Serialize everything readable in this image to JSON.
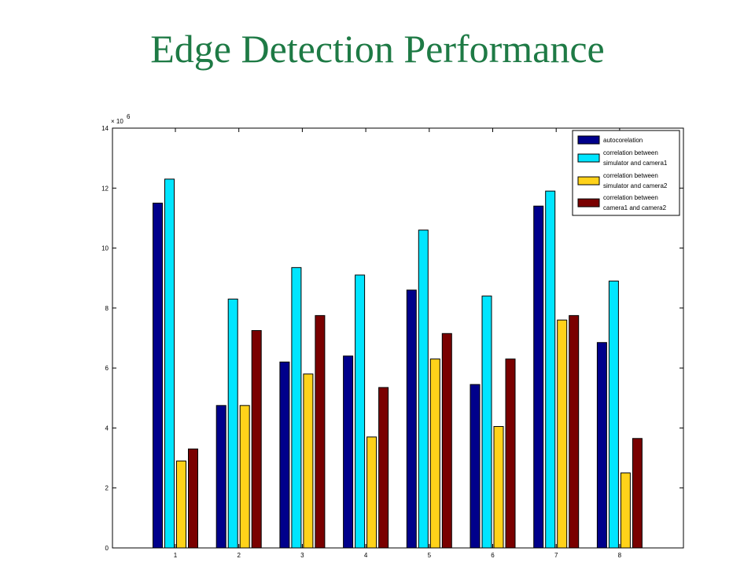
{
  "slide": {
    "title": "Edge Detection Performance"
  },
  "colors": {
    "title": "#1e7a45",
    "series": [
      "#00008b",
      "#00e5ff",
      "#ffd21a",
      "#7a0000"
    ]
  },
  "chart_data": {
    "type": "bar",
    "title": "",
    "xlabel": "",
    "ylabel": "",
    "y_multiplier": "× 10",
    "y_exponent": "6",
    "categories": [
      "1",
      "2",
      "3",
      "4",
      "5",
      "6",
      "7",
      "8"
    ],
    "ylim": [
      0,
      14
    ],
    "yticks": [
      0,
      2,
      4,
      6,
      8,
      10,
      12,
      14
    ],
    "grid": false,
    "legend_position": "top-right",
    "series": [
      {
        "name": "autocorelation",
        "values": [
          11.5,
          4.75,
          6.2,
          6.4,
          8.6,
          5.45,
          11.4,
          6.85
        ]
      },
      {
        "name": "correlation between simulator and camera1",
        "values": [
          12.3,
          8.3,
          9.35,
          9.1,
          10.6,
          8.4,
          11.9,
          8.9
        ]
      },
      {
        "name": "correlation between simulator and camera2",
        "values": [
          2.9,
          4.75,
          5.8,
          3.7,
          6.3,
          4.05,
          7.6,
          2.5
        ]
      },
      {
        "name": "correlation between camera1 and camera2",
        "values": [
          3.3,
          7.25,
          7.75,
          5.35,
          7.15,
          6.3,
          7.75,
          3.65
        ]
      }
    ],
    "legend_lines": [
      [
        "autocorelation"
      ],
      [
        "correlation between",
        "simulator and camera1"
      ],
      [
        "correlation between",
        "simulator and camera2"
      ],
      [
        "correlation between",
        "camera1 and camera2"
      ]
    ]
  }
}
